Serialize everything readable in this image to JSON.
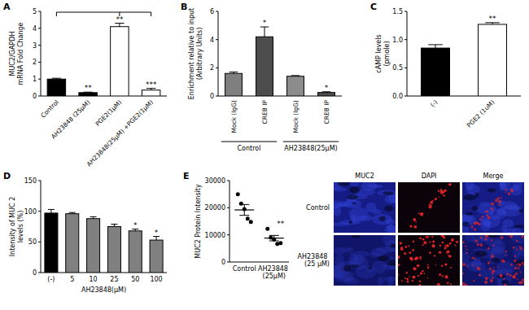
{
  "chart_data": [
    {
      "type": "bar",
      "panel": "A",
      "ylabel": [
        "MUC2/GAPDH",
        "mRNA Fold Change"
      ],
      "categories": [
        "Control",
        "AH23848 (25μM)",
        "PGE2(1μM)",
        "AH23848(25μM) +PGE2(1μM)"
      ],
      "values": [
        1.0,
        0.2,
        4.1,
        0.35
      ],
      "errors": [
        0.05,
        0.03,
        0.2,
        0.1
      ],
      "colors": [
        "#000000",
        "#000000",
        "#ffffff",
        "#ffffff"
      ],
      "annotations": [
        null,
        "**",
        "**",
        "***"
      ],
      "ylim": [
        0,
        5
      ],
      "yticks": [
        0,
        1,
        2,
        3,
        4,
        5
      ]
    },
    {
      "type": "bar",
      "panel": "B",
      "ylabel": [
        "Enrichment relative to input",
        "(Arbitrary Units)"
      ],
      "categories": [
        "Mock (IgG)",
        "CREB IP",
        "Mock (IgG)",
        "CREB IP"
      ],
      "groups": [
        "Control",
        "AH23848(25μM)"
      ],
      "values": [
        1.6,
        4.2,
        1.4,
        0.25
      ],
      "errors": [
        0.1,
        0.7,
        0.05,
        0.05
      ],
      "colors": [
        "#7f7f7f",
        "#4d4d4d",
        "#8c8c8c",
        "#4d4d4d"
      ],
      "annotations": [
        null,
        "*",
        null,
        "*"
      ],
      "ylim": [
        0,
        6
      ],
      "yticks": [
        0,
        2,
        4,
        6
      ]
    },
    {
      "type": "bar",
      "panel": "C",
      "ylabel": [
        "cAMP levels",
        "(pmole)"
      ],
      "categories": [
        "(-)",
        "PGE2 (1uM)"
      ],
      "values": [
        0.85,
        1.27
      ],
      "errors": [
        0.06,
        0.03
      ],
      "colors": [
        "#000000",
        "#ffffff"
      ],
      "annotations": [
        null,
        "**"
      ],
      "ylim": [
        0,
        1.5
      ],
      "yticks": [
        {
          "value": 0,
          "label": "0.0"
        },
        0.5,
        {
          "value": 1,
          "label": "1.0"
        },
        1.5
      ]
    },
    {
      "type": "bar",
      "panel": "D",
      "ylabel": [
        "Intensity of MUC 2",
        "levels (%)"
      ],
      "xlabel": "AH23848(μM)",
      "categories": [
        "(-)",
        "5",
        "10",
        "25",
        "50",
        "100"
      ],
      "values": [
        97,
        96,
        88,
        75,
        68,
        53
      ],
      "errors": [
        6,
        2,
        3,
        4,
        3,
        6
      ],
      "colors": [
        "#000000",
        "#808080",
        "#808080",
        "#808080",
        "#808080",
        "#808080"
      ],
      "annotations": [
        null,
        null,
        null,
        null,
        "*",
        "*"
      ],
      "ylim": [
        0,
        150
      ],
      "yticks": [
        0,
        50,
        100,
        150
      ]
    },
    {
      "type": "dot",
      "panel": "E",
      "ylabel": [
        "MUC2 Protein Intensity"
      ],
      "categories": [
        "Control",
        "AH23848 (25μM)"
      ],
      "points": [
        [
          25000,
          21500,
          19500,
          16000,
          14800
        ],
        [
          12200,
          9000,
          8300,
          6700,
          7000
        ]
      ],
      "means": [
        19200,
        8800
      ],
      "errors": [
        2000,
        1000
      ],
      "color": "#000000",
      "annotations": [
        null,
        "**"
      ],
      "ylim": [
        0,
        30000
      ],
      "yticks": [
        0,
        10000,
        20000,
        30000
      ],
      "images": {
        "columns": [
          "MUC2",
          "DAPI",
          "Merge"
        ],
        "rows": [
          "Control",
          "AH23848 (25 μM)"
        ]
      }
    }
  ]
}
